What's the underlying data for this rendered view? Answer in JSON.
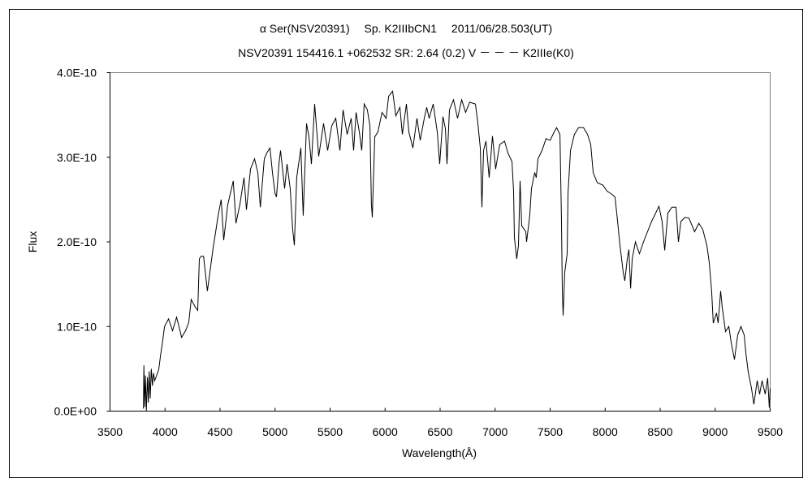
{
  "chart_data": {
    "type": "line",
    "title": "α Ser(NSV20391)　 Sp. K2IIIbCN1　 2011/06/28.503(UT)",
    "subtitle": "NSV20391 154416.1 +062532 SR: 2.64 (0.2) V － － － K2IIIe(K0)",
    "xlabel": "Wavelength(Å)",
    "ylabel": "Flux",
    "xlim": [
      3500,
      9500
    ],
    "ylim": [
      0,
      4e-10
    ],
    "x_ticks": [
      "3500",
      "4000",
      "4500",
      "5000",
      "5500",
      "6000",
      "6500",
      "7000",
      "7500",
      "8000",
      "8500",
      "9000",
      "9500"
    ],
    "y_ticks": [
      "0.0E+00",
      "1.0E-10",
      "2.0E-10",
      "3.0E-10",
      "4.0E-10"
    ],
    "grid": false,
    "line_color": "#000000",
    "series": [
      {
        "x": [
          3803,
          3808,
          3815,
          3822,
          3830,
          3840,
          3848,
          3856,
          3865,
          3875,
          3885,
          3895,
          3906,
          3943,
          3958,
          3980,
          3995,
          4032,
          4068,
          4105,
          4142,
          4150,
          4186,
          4216,
          4238,
          4275,
          4297,
          4312,
          4327,
          4350,
          4385,
          4437,
          4460,
          4482,
          4510,
          4533,
          4570,
          4620,
          4645,
          4680,
          4718,
          4740,
          4777,
          4814,
          4843,
          4866,
          4902,
          4924,
          4954,
          4976,
          5000,
          5013,
          5035,
          5050,
          5087,
          5109,
          5138,
          5160,
          5175,
          5197,
          5234,
          5256,
          5286,
          5308,
          5330,
          5360,
          5397,
          5441,
          5478,
          5515,
          5552,
          5589,
          5618,
          5655,
          5692,
          5714,
          5736,
          5766,
          5788,
          5810,
          5839,
          5862,
          5876,
          5884,
          5906,
          5935,
          5972,
          6009,
          6032,
          6068,
          6098,
          6135,
          6157,
          6194,
          6216,
          6253,
          6290,
          6319,
          6356,
          6378,
          6400,
          6437,
          6474,
          6496,
          6526,
          6548,
          6563,
          6585,
          6622,
          6659,
          6696,
          6732,
          6769,
          6821,
          6843,
          6865,
          6880,
          6895,
          6917,
          6946,
          6976,
          7005,
          7042,
          7086,
          7116,
          7153,
          7168,
          7175,
          7197,
          7212,
          7227,
          7242,
          7279,
          7286,
          7315,
          7330,
          7360,
          7374,
          7389,
          7426,
          7463,
          7500,
          7537,
          7559,
          7589,
          7603,
          7611,
          7618,
          7633,
          7655,
          7662,
          7685,
          7721,
          7758,
          7803,
          7840,
          7869,
          7891,
          7928,
          7980,
          8017,
          8054,
          8090,
          8113,
          8135,
          8164,
          8179,
          8201,
          8216,
          8231,
          8246,
          8275,
          8312,
          8349,
          8385,
          8422,
          8459,
          8489,
          8518,
          8541,
          8570,
          8607,
          8644,
          8666,
          8688,
          8725,
          8762,
          8813,
          8851,
          8887,
          8924,
          8946,
          8968,
          8983,
          9012,
          9027,
          9050,
          9064,
          9094,
          9124,
          9146,
          9175,
          9205,
          9234,
          9264,
          9279,
          9301,
          9330,
          9352,
          9382,
          9404,
          9426,
          9455,
          9477,
          9492,
          9500
        ],
        "y": [
          3e-12,
          5.4e-11,
          5e-12,
          4.2e-11,
          0.0,
          4e-11,
          1e-11,
          4.7e-11,
          1.5e-11,
          5e-11,
          3e-11,
          4.5e-11,
          3.6e-11,
          4.9e-11,
          6.5e-11,
          8.4e-11,
          1e-10,
          1.09e-10,
          9.5e-11,
          1.11e-10,
          9.2e-11,
          8.7e-11,
          9.5e-11,
          1.05e-10,
          1.32e-10,
          1.23e-10,
          1.19e-10,
          1.8e-10,
          1.83e-10,
          1.83e-10,
          1.42e-10,
          1.93e-10,
          2.12e-10,
          2.31e-10,
          2.5e-10,
          2.02e-10,
          2.44e-10,
          2.72e-10,
          2.22e-10,
          2.44e-10,
          2.76e-10,
          2.38e-10,
          2.86e-10,
          2.98e-10,
          2.82e-10,
          2.41e-10,
          2.98e-10,
          3.05e-10,
          3.11e-10,
          2.82e-10,
          2.57e-10,
          2.53e-10,
          2.92e-10,
          3.08e-10,
          2.63e-10,
          2.92e-10,
          2.63e-10,
          2.15e-10,
          1.96e-10,
          2.76e-10,
          3.11e-10,
          2.31e-10,
          3.4e-10,
          3.24e-10,
          2.92e-10,
          3.63e-10,
          3.01e-10,
          3.4e-10,
          3.08e-10,
          3.37e-10,
          3.46e-10,
          3.08e-10,
          3.56e-10,
          3.27e-10,
          3.46e-10,
          3.08e-10,
          3.53e-10,
          3.3e-10,
          3.08e-10,
          3.63e-10,
          3.56e-10,
          3.37e-10,
          2.44e-10,
          2.29e-10,
          3.24e-10,
          3.3e-10,
          3.53e-10,
          3.46e-10,
          3.72e-10,
          3.78e-10,
          3.49e-10,
          3.59e-10,
          3.27e-10,
          3.63e-10,
          3.3e-10,
          3.11e-10,
          3.46e-10,
          3.2e-10,
          3.46e-10,
          3.59e-10,
          3.46e-10,
          3.63e-10,
          3.3e-10,
          2.92e-10,
          3.48e-10,
          3.34e-10,
          2.92e-10,
          3.56e-10,
          3.68e-10,
          3.46e-10,
          3.68e-10,
          3.53e-10,
          3.65e-10,
          3.63e-10,
          3.4e-10,
          3.11e-10,
          2.41e-10,
          3.08e-10,
          3.19e-10,
          2.76e-10,
          3.25e-10,
          2.86e-10,
          3.15e-10,
          3.19e-10,
          3.05e-10,
          2.95e-10,
          2.6e-10,
          2.05e-10,
          1.8e-10,
          1.96e-10,
          2.72e-10,
          2.19e-10,
          2.12e-10,
          2e-10,
          2.31e-10,
          2.63e-10,
          2.82e-10,
          2.76e-10,
          2.98e-10,
          3.08e-10,
          3.22e-10,
          3.2e-10,
          3.3e-10,
          3.35e-10,
          3.27e-10,
          2.24e-10,
          1.42e-10,
          1.13e-10,
          1.64e-10,
          1.86e-10,
          2.57e-10,
          3.08e-10,
          3.27e-10,
          3.35e-10,
          3.35e-10,
          3.27e-10,
          3.15e-10,
          2.82e-10,
          2.7e-10,
          2.67e-10,
          2.6e-10,
          2.57e-10,
          2.53e-10,
          2.24e-10,
          1.96e-10,
          1.64e-10,
          1.54e-10,
          1.8e-10,
          1.91e-10,
          1.45e-10,
          1.8e-10,
          2e-10,
          1.86e-10,
          2e-10,
          2.12e-10,
          2.24e-10,
          2.34e-10,
          2.42e-10,
          2.24e-10,
          1.9e-10,
          2.34e-10,
          2.41e-10,
          2.41e-10,
          2e-10,
          2.24e-10,
          2.29e-10,
          2.28e-10,
          2.12e-10,
          2.22e-10,
          2.15e-10,
          1.96e-10,
          1.76e-10,
          1.42e-10,
          1.04e-10,
          1.16e-10,
          1.04e-10,
          1.42e-10,
          1.23e-10,
          9.4e-11,
          1e-10,
          8.1e-11,
          6.1e-11,
          9e-11,
          1e-10,
          9e-11,
          6.8e-11,
          4.6e-11,
          2.7e-11,
          8e-12,
          3.6e-11,
          2e-11,
          3.6e-11,
          2e-11,
          3.9e-11,
          4e-12,
          2.7e-11
        ]
      }
    ]
  }
}
